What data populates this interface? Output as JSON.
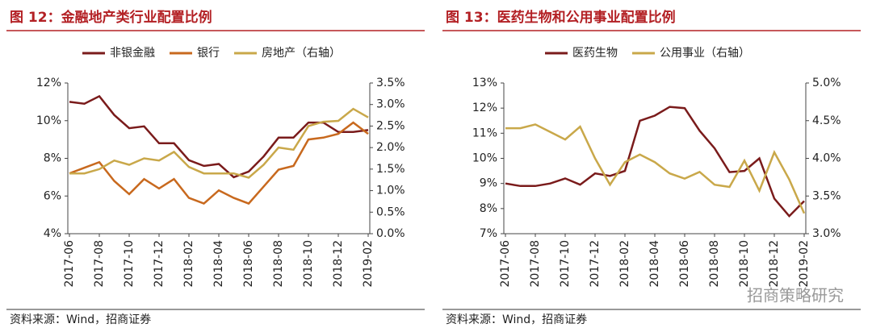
{
  "chart_data": [
    {
      "type": "line",
      "title": "图 12：金融地产类行业配置比例",
      "categories": [
        "2017-06",
        null,
        "2017-08",
        null,
        "2017-10",
        null,
        "2017-12",
        null,
        "2018-02",
        null,
        "2018-04",
        null,
        "2018-06",
        null,
        "2018-08",
        null,
        "2018-10",
        null,
        "2018-12",
        null,
        "2019-02"
      ],
      "series": [
        {
          "name": "非银金融",
          "color": "#7a1b1b",
          "values": [
            11.0,
            10.9,
            11.3,
            10.3,
            9.6,
            9.7,
            8.8,
            8.8,
            7.9,
            7.6,
            7.7,
            7.0,
            7.3,
            8.1,
            9.1,
            9.1,
            9.9,
            9.9,
            9.4,
            9.4,
            9.5
          ]
        },
        {
          "name": "银行",
          "color": "#c8691e",
          "values": [
            7.2,
            7.5,
            7.8,
            6.8,
            6.1,
            6.9,
            6.4,
            6.9,
            5.9,
            5.6,
            6.3,
            5.9,
            5.6,
            6.5,
            7.4,
            7.6,
            9.0,
            9.1,
            9.3,
            9.9,
            9.3
          ]
        },
        {
          "name": "房地产（右轴）",
          "color": "#c9a84a",
          "axis": "y2",
          "values": [
            1.4,
            1.4,
            1.5,
            1.7,
            1.6,
            1.75,
            1.7,
            1.9,
            1.55,
            1.4,
            1.4,
            1.4,
            1.3,
            1.6,
            2.0,
            1.95,
            2.5,
            2.6,
            2.62,
            2.9,
            2.7
          ]
        }
      ],
      "ylim": [
        4,
        12
      ],
      "yticks": [
        {
          "value": 4,
          "label": "4%"
        },
        {
          "value": 6,
          "label": "6%"
        },
        {
          "value": 8,
          "label": "8%"
        },
        {
          "value": 10,
          "label": "10%"
        },
        {
          "value": 12,
          "label": "12%"
        }
      ],
      "y2lim": [
        0,
        3.5
      ],
      "y2ticks": [
        {
          "value": 0,
          "label": "0.0%"
        },
        {
          "value": 0.5,
          "label": "0.5%"
        },
        {
          "value": 1,
          "label": "1.0%"
        },
        {
          "value": 1.5,
          "label": "1.5%"
        },
        {
          "value": 2,
          "label": "2.0%"
        },
        {
          "value": 2.5,
          "label": "2.5%"
        },
        {
          "value": 3,
          "label": "3.0%"
        },
        {
          "value": 3.5,
          "label": "3.5%"
        }
      ],
      "legend": "top",
      "source": "资料来源：Wind，招商证券"
    },
    {
      "type": "line",
      "title": "图 13：医药生物和公用事业配置比例",
      "categories": [
        "2017-06",
        null,
        "2017-08",
        null,
        "2017-10",
        null,
        "2017-12",
        null,
        "2018-02",
        null,
        "2018-04",
        null,
        "2018-06",
        null,
        "2018-08",
        null,
        "2018-10",
        null,
        "2018-12",
        null,
        "2019-02"
      ],
      "series": [
        {
          "name": "医药生物",
          "color": "#7a1b1b",
          "values": [
            9.0,
            8.9,
            8.9,
            9.0,
            9.2,
            8.95,
            9.4,
            9.3,
            9.5,
            11.5,
            11.7,
            12.05,
            12.0,
            11.1,
            10.4,
            9.45,
            9.5,
            10.0,
            8.4,
            7.7,
            8.3
          ]
        },
        {
          "name": "公用事业（右轴）",
          "color": "#c9a84a",
          "axis": "y2",
          "values": [
            4.4,
            4.4,
            4.45,
            4.35,
            4.25,
            4.42,
            4.0,
            3.65,
            3.95,
            4.05,
            3.95,
            3.8,
            3.73,
            3.82,
            3.65,
            3.62,
            3.97,
            3.57,
            4.08,
            3.72,
            3.27
          ]
        }
      ],
      "ylim": [
        7,
        13
      ],
      "yticks": [
        {
          "value": 7,
          "label": "7%"
        },
        {
          "value": 8,
          "label": "8%"
        },
        {
          "value": 9,
          "label": "9%"
        },
        {
          "value": 10,
          "label": "10%"
        },
        {
          "value": 11,
          "label": "11%"
        },
        {
          "value": 12,
          "label": "12%"
        },
        {
          "value": 13,
          "label": "13%"
        }
      ],
      "y2lim": [
        3,
        5
      ],
      "y2ticks": [
        {
          "value": 3,
          "label": "3.0%"
        },
        {
          "value": 3.5,
          "label": "3.5%"
        },
        {
          "value": 4,
          "label": "4.0%"
        },
        {
          "value": 4.5,
          "label": "4.5%"
        },
        {
          "value": 5,
          "label": "5.0%"
        }
      ],
      "legend": "top",
      "source": "资料来源：Wind，招商证券"
    }
  ],
  "watermark": "招商策略研究"
}
